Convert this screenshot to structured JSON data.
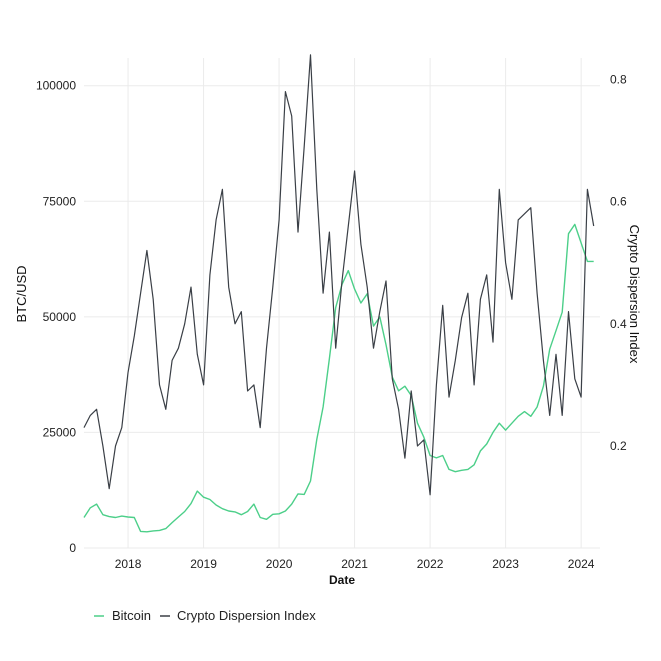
{
  "chart_data": {
    "type": "line",
    "xlabel": "Date",
    "ylabel_left": "BTC/USD",
    "ylabel_right": "Crypto Dispersion Index",
    "x_range": [
      "2017-06",
      "2024-04"
    ],
    "x_ticks": [
      "2018",
      "2019",
      "2020",
      "2021",
      "2022",
      "2023",
      "2024"
    ],
    "y_left_range": [
      0,
      106000
    ],
    "y_left_ticks": [
      "0",
      "25000",
      "50000",
      "75000",
      "100000"
    ],
    "y_right_range": [
      0.033,
      0.835
    ],
    "y_right_ticks": [
      "0.2",
      "0.4",
      "0.6",
      "0.8"
    ],
    "grid": true,
    "legend_position": "bottom-left",
    "colors": {
      "bitcoin": "#4ccf89",
      "dispersion": "#3a3f46"
    },
    "series": [
      {
        "name": "Bitcoin",
        "axis": "left",
        "x": [
          "2017-06",
          "2017-07",
          "2017-08",
          "2017-09",
          "2017-10",
          "2017-11",
          "2017-12",
          "2018-01",
          "2018-02",
          "2018-03",
          "2018-04",
          "2018-05",
          "2018-06",
          "2018-07",
          "2018-08",
          "2018-09",
          "2018-10",
          "2018-11",
          "2018-12",
          "2019-01",
          "2019-02",
          "2019-03",
          "2019-04",
          "2019-05",
          "2019-06",
          "2019-07",
          "2019-08",
          "2019-09",
          "2019-10",
          "2019-11",
          "2019-12",
          "2020-01",
          "2020-02",
          "2020-03",
          "2020-04",
          "2020-05",
          "2020-06",
          "2020-07",
          "2020-08",
          "2020-09",
          "2020-10",
          "2020-11",
          "2020-12",
          "2021-01",
          "2021-02",
          "2021-03",
          "2021-04",
          "2021-05",
          "2021-06",
          "2021-07",
          "2021-08",
          "2021-09",
          "2021-10",
          "2021-11",
          "2021-12",
          "2022-01",
          "2022-02",
          "2022-03",
          "2022-04",
          "2022-05",
          "2022-06",
          "2022-07",
          "2022-08",
          "2022-09",
          "2022-10",
          "2022-11",
          "2022-12",
          "2023-01",
          "2023-02",
          "2023-03",
          "2023-04",
          "2023-05",
          "2023-06",
          "2023-07",
          "2023-08",
          "2023-09",
          "2023-10",
          "2023-11",
          "2023-12",
          "2024-01",
          "2024-02",
          "2024-03"
        ],
        "values": [
          6600,
          8700,
          9500,
          7200,
          6800,
          6600,
          6900,
          6700,
          6600,
          3600,
          3500,
          3700,
          3800,
          4200,
          5500,
          6700,
          7900,
          9600,
          12300,
          11000,
          10500,
          9300,
          8500,
          8000,
          7800,
          7200,
          7900,
          9500,
          6600,
          6200,
          7300,
          7400,
          8000,
          9500,
          11700,
          11600,
          14500,
          23500,
          30500,
          41000,
          52000,
          57000,
          60000,
          56000,
          53000,
          55000,
          48000,
          50000,
          44000,
          37000,
          34000,
          35000,
          33000,
          27000,
          24000,
          20000,
          19500,
          20000,
          17000,
          16500,
          16800,
          17000,
          18000,
          21000,
          22500,
          25000,
          27000,
          25500,
          27000,
          28500,
          29500,
          28500,
          30500,
          35000,
          43000,
          47000,
          51000,
          68000,
          70000,
          66000,
          62000,
          62000
        ]
      },
      {
        "name": "Crypto Dispersion Index",
        "axis": "right",
        "x": [
          "2017-06",
          "2017-07",
          "2017-08",
          "2017-09",
          "2017-10",
          "2017-11",
          "2017-12",
          "2018-01",
          "2018-02",
          "2018-03",
          "2018-04",
          "2018-05",
          "2018-06",
          "2018-07",
          "2018-08",
          "2018-09",
          "2018-10",
          "2018-11",
          "2018-12",
          "2019-01",
          "2019-02",
          "2019-03",
          "2019-04",
          "2019-05",
          "2019-06",
          "2019-07",
          "2019-08",
          "2019-09",
          "2019-10",
          "2019-11",
          "2019-12",
          "2020-01",
          "2020-02",
          "2020-03",
          "2020-04",
          "2020-05",
          "2020-06",
          "2020-07",
          "2020-08",
          "2020-09",
          "2020-10",
          "2020-11",
          "2020-12",
          "2021-01",
          "2021-02",
          "2021-03",
          "2021-04",
          "2021-05",
          "2021-06",
          "2021-07",
          "2021-08",
          "2021-09",
          "2021-10",
          "2021-11",
          "2021-12",
          "2022-01",
          "2022-02",
          "2022-03",
          "2022-04",
          "2022-05",
          "2022-06",
          "2022-07",
          "2022-08",
          "2022-09",
          "2022-10",
          "2022-11",
          "2022-12",
          "2023-01",
          "2023-02",
          "2023-03",
          "2023-04",
          "2023-05",
          "2023-06",
          "2023-07",
          "2023-08",
          "2023-09",
          "2023-10",
          "2023-11",
          "2023-12",
          "2024-01",
          "2024-02",
          "2024-03"
        ],
        "values": [
          0.23,
          0.25,
          0.26,
          0.2,
          0.13,
          0.2,
          0.23,
          0.32,
          0.38,
          0.45,
          0.52,
          0.44,
          0.3,
          0.26,
          0.34,
          0.36,
          0.4,
          0.46,
          0.35,
          0.3,
          0.48,
          0.57,
          0.62,
          0.46,
          0.4,
          0.42,
          0.29,
          0.3,
          0.23,
          0.36,
          0.46,
          0.57,
          0.78,
          0.74,
          0.55,
          0.69,
          0.84,
          0.62,
          0.45,
          0.55,
          0.36,
          0.47,
          0.56,
          0.65,
          0.53,
          0.46,
          0.36,
          0.42,
          0.47,
          0.31,
          0.26,
          0.18,
          0.29,
          0.2,
          0.21,
          0.12,
          0.3,
          0.43,
          0.28,
          0.34,
          0.41,
          0.45,
          0.3,
          0.44,
          0.48,
          0.37,
          0.62,
          0.5,
          0.44,
          0.57,
          0.58,
          0.59,
          0.45,
          0.34,
          0.25,
          0.35,
          0.25,
          0.42,
          0.31,
          0.28,
          0.62,
          0.56
        ]
      }
    ]
  }
}
